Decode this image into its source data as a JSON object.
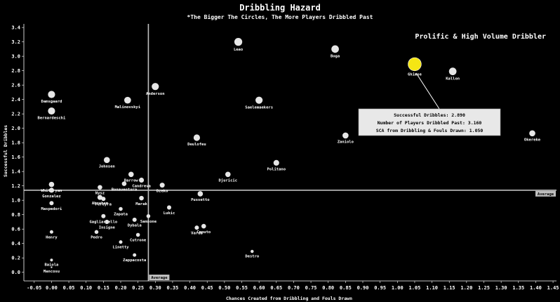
{
  "chart_data": {
    "type": "scatter",
    "title": "Dribbling Hazard",
    "subtitle": "*The Bigger The Circles, The More Players Dribbled Past",
    "xlabel": "Chances Created from Dribbling and Fouls Drawn",
    "ylabel": "Successful Dribbles",
    "xlim": [
      -0.08,
      1.46
    ],
    "ylim": [
      -0.12,
      3.45
    ],
    "x_ticks": [
      "-0.05",
      "0.00",
      "0.05",
      "0.10",
      "0.15",
      "0.20",
      "0.25",
      "0.30",
      "0.35",
      "0.40",
      "0.45",
      "0.50",
      "0.55",
      "0.60",
      "0.65",
      "0.70",
      "0.75",
      "0.80",
      "0.85",
      "0.90",
      "0.95",
      "1.00",
      "1.05",
      "1.10",
      "1.15",
      "1.20",
      "1.25",
      "1.30",
      "1.35",
      "1.40",
      "1.45"
    ],
    "y_ticks": [
      "0.0",
      "0.2",
      "0.4",
      "0.6",
      "0.8",
      "1.0",
      "1.2",
      "1.4",
      "1.6",
      "1.8",
      "2.0",
      "2.2",
      "2.4",
      "2.6",
      "2.8",
      "3.0",
      "3.2",
      "3.4"
    ],
    "avg_x": 0.28,
    "avg_y": 1.14,
    "avg_x_label": "Average",
    "avg_y_label": "Average",
    "quadrant_label": "Prolific & High Volume Dribbler",
    "highlight_color": "#f5e614",
    "point_color": "#e6e6e6",
    "points": [
      {
        "label": "Leao",
        "x": 0.54,
        "y": 3.2,
        "size": 1.7
      },
      {
        "label": "Boga",
        "x": 0.82,
        "y": 3.1,
        "size": 1.6
      },
      {
        "label": "Ghimse",
        "x": 1.05,
        "y": 2.89,
        "size": 3.16,
        "highlight": true
      },
      {
        "label": "Kallon",
        "x": 1.16,
        "y": 2.79,
        "size": 1.6
      },
      {
        "label": "Anderson",
        "x": 0.3,
        "y": 2.58,
        "size": 1.5
      },
      {
        "label": "Damsgaard",
        "x": 0.0,
        "y": 2.47,
        "size": 1.5
      },
      {
        "label": "Malinovskyi",
        "x": 0.22,
        "y": 2.39,
        "size": 1.4
      },
      {
        "label": "Saelemaekers",
        "x": 0.6,
        "y": 2.39,
        "size": 1.5
      },
      {
        "label": "Bernardeschi",
        "x": 0.0,
        "y": 2.24,
        "size": 1.5
      },
      {
        "label": "Zaniolo",
        "x": 0.85,
        "y": 1.9,
        "size": 1.2
      },
      {
        "label": "Okereke",
        "x": 1.39,
        "y": 1.93,
        "size": 1.2
      },
      {
        "label": "Deulofeu",
        "x": 0.42,
        "y": 1.87,
        "size": 1.3
      },
      {
        "label": "Johnsen",
        "x": 0.16,
        "y": 1.56,
        "size": 1.2
      },
      {
        "label": "Politano",
        "x": 0.65,
        "y": 1.52,
        "size": 1.1
      },
      {
        "label": "Barrow",
        "x": 0.23,
        "y": 1.36,
        "size": 1.0
      },
      {
        "label": "Candreva",
        "x": 0.26,
        "y": 1.28,
        "size": 0.9
      },
      {
        "label": "Djuricic",
        "x": 0.51,
        "y": 1.36,
        "size": 1.0
      },
      {
        "label": "Whitaryan",
        "x": 0.0,
        "y": 1.22,
        "size": 1.0
      },
      {
        "label": "Dzeko",
        "x": 0.32,
        "y": 1.21,
        "size": 0.9
      },
      {
        "label": "Nysz",
        "x": 0.14,
        "y": 1.18,
        "size": 0.8
      },
      {
        "label": "Bonaventura",
        "x": 0.21,
        "y": 1.23,
        "size": 0.8
      },
      {
        "label": "Gonzalez",
        "x": 0.0,
        "y": 1.14,
        "size": 0.9
      },
      {
        "label": "Abraham",
        "x": 0.14,
        "y": 1.04,
        "size": 0.9
      },
      {
        "label": "Pereyra",
        "x": 0.15,
        "y": 1.02,
        "size": 0.7
      },
      {
        "label": "Marak",
        "x": 0.26,
        "y": 1.03,
        "size": 0.8
      },
      {
        "label": "Pussetto",
        "x": 0.43,
        "y": 1.09,
        "size": 1.0
      },
      {
        "label": "Maspedori",
        "x": 0.0,
        "y": 0.96,
        "size": 0.7
      },
      {
        "label": "Lukic",
        "x": 0.34,
        "y": 0.9,
        "size": 0.7
      },
      {
        "label": "Zapata",
        "x": 0.2,
        "y": 0.88,
        "size": 0.6
      },
      {
        "label": "Gagliardello",
        "x": 0.15,
        "y": 0.78,
        "size": 0.7
      },
      {
        "label": "Samsone",
        "x": 0.28,
        "y": 0.78,
        "size": 0.6
      },
      {
        "label": "Insigne",
        "x": 0.16,
        "y": 0.7,
        "size": 0.7
      },
      {
        "label": "Dybala",
        "x": 0.24,
        "y": 0.73,
        "size": 0.7
      },
      {
        "label": "Caputo",
        "x": 0.44,
        "y": 0.64,
        "size": 0.8
      },
      {
        "label": "Varda",
        "x": 0.42,
        "y": 0.62,
        "size": 0.7
      },
      {
        "label": "Pedro",
        "x": 0.13,
        "y": 0.56,
        "size": 0.6
      },
      {
        "label": "Cutrone",
        "x": 0.25,
        "y": 0.52,
        "size": 0.6
      },
      {
        "label": "Henry",
        "x": 0.0,
        "y": 0.56,
        "size": 0.5
      },
      {
        "label": "Linetty",
        "x": 0.2,
        "y": 0.42,
        "size": 0.5
      },
      {
        "label": "Zappacosta",
        "x": 0.24,
        "y": 0.24,
        "size": 0.5
      },
      {
        "label": "Destro",
        "x": 0.58,
        "y": 0.29,
        "size": 0.4
      },
      {
        "label": "Baiola",
        "x": 0.0,
        "y": 0.17,
        "size": 0.3
      },
      {
        "label": "Mancosu",
        "x": 0.0,
        "y": 0.07,
        "size": 0.0
      }
    ],
    "tooltip": {
      "line1": "Successful Dribbles: 2.890",
      "line2": "Number of Players Dribbled Past: 3.160",
      "line3": "SCA from Dribbling & Fouls Drawn: 1.050"
    }
  }
}
